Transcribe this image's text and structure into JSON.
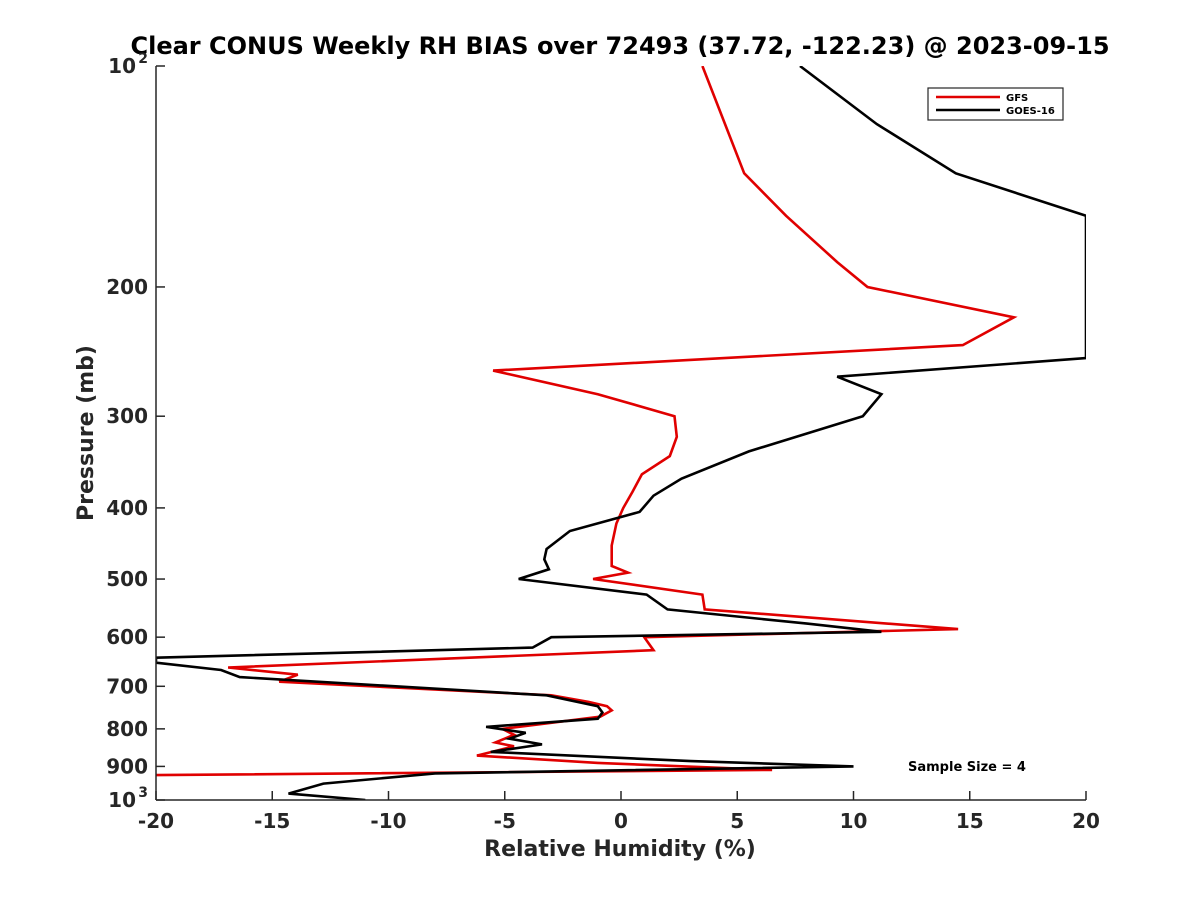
{
  "chart_data": {
    "type": "line",
    "title": "Clear CONUS Weekly RH BIAS over 72493 (37.72, -122.23) @ 2023-09-15",
    "xlabel": "Relative Humidity (%)",
    "ylabel": "Pressure (mb)",
    "xlim": [
      -20,
      20
    ],
    "ylim": [
      100,
      1000
    ],
    "y_scale": "log",
    "y_reversed": false,
    "x_ticks": [
      -20,
      -15,
      -10,
      -5,
      0,
      5,
      10,
      15,
      20
    ],
    "x_tick_labels": [
      "-20",
      "-15",
      "-10",
      "-5",
      "0",
      "5",
      "10",
      "15",
      "20"
    ],
    "y_ticks": [
      {
        "value": 100,
        "base": "10",
        "exp": "2"
      },
      {
        "value": 200,
        "label": "200"
      },
      {
        "value": 300,
        "label": "300"
      },
      {
        "value": 400,
        "label": "400"
      },
      {
        "value": 500,
        "label": "500"
      },
      {
        "value": 600,
        "label": "600"
      },
      {
        "value": 700,
        "label": "700"
      },
      {
        "value": 800,
        "label": "800"
      },
      {
        "value": 900,
        "label": "900"
      },
      {
        "value": 1000,
        "base": "10",
        "exp": "3"
      }
    ],
    "grid": false,
    "legend_position": "top-right",
    "annotation": "Sample Size = 4",
    "series": [
      {
        "name": "GFS",
        "color": "#e00000",
        "points": [
          [
            3.5,
            100
          ],
          [
            5.3,
            140
          ],
          [
            7.1,
            160
          ],
          [
            9.3,
            185
          ],
          [
            10.6,
            200
          ],
          [
            16.9,
            220
          ],
          [
            14.7,
            240
          ],
          [
            -5.5,
            260
          ],
          [
            -1.0,
            280
          ],
          [
            2.3,
            300
          ],
          [
            2.4,
            320
          ],
          [
            2.1,
            340
          ],
          [
            0.9,
            360
          ],
          [
            0.5,
            380
          ],
          [
            0.1,
            400
          ],
          [
            -0.2,
            420
          ],
          [
            -0.4,
            450
          ],
          [
            -0.4,
            480
          ],
          [
            0.3,
            490
          ],
          [
            -1.2,
            500
          ],
          [
            3.5,
            525
          ],
          [
            3.6,
            550
          ],
          [
            14.5,
            585
          ],
          [
            1.0,
            600
          ],
          [
            1.4,
            625
          ],
          [
            -16.9,
            660
          ],
          [
            -13.9,
            675
          ],
          [
            -14.7,
            690
          ],
          [
            -3.0,
            720
          ],
          [
            -1.4,
            735
          ],
          [
            -0.6,
            745
          ],
          [
            -0.4,
            755
          ],
          [
            -0.9,
            770
          ],
          [
            -5.1,
            800
          ],
          [
            -4.6,
            815
          ],
          [
            -5.4,
            835
          ],
          [
            -4.6,
            845
          ],
          [
            -6.2,
            870
          ],
          [
            -1.0,
            890
          ],
          [
            6.5,
            910
          ],
          [
            -20.0,
            925
          ],
          [
            -20.0,
            925
          ]
        ]
      },
      {
        "name": "GOES-16",
        "color": "#000000",
        "points": [
          [
            7.7,
            100
          ],
          [
            11.0,
            120
          ],
          [
            14.4,
            140
          ],
          [
            20.0,
            160
          ],
          [
            20.0,
            250
          ],
          [
            9.3,
            265
          ],
          [
            11.2,
            280
          ],
          [
            10.4,
            300
          ],
          [
            5.5,
            335
          ],
          [
            2.6,
            365
          ],
          [
            1.4,
            385
          ],
          [
            0.8,
            405
          ],
          [
            -2.2,
            430
          ],
          [
            -3.2,
            455
          ],
          [
            -3.3,
            470
          ],
          [
            -3.1,
            485
          ],
          [
            -4.4,
            500
          ],
          [
            1.1,
            525
          ],
          [
            2.0,
            550
          ],
          [
            8.0,
            575
          ],
          [
            11.2,
            590
          ],
          [
            -3.0,
            600
          ],
          [
            -3.8,
            620
          ],
          [
            -20.0,
            640
          ],
          [
            -20.0,
            640
          ],
          [
            -20.0,
            650
          ],
          [
            -17.2,
            665
          ],
          [
            -16.4,
            680
          ],
          [
            -3.2,
            720
          ],
          [
            -1.0,
            745
          ],
          [
            -0.8,
            760
          ],
          [
            -1.0,
            775
          ],
          [
            -5.8,
            795
          ],
          [
            -4.1,
            810
          ],
          [
            -4.8,
            825
          ],
          [
            -3.4,
            840
          ],
          [
            -5.6,
            860
          ],
          [
            3.0,
            885
          ],
          [
            10.0,
            900
          ],
          [
            -8.0,
            920
          ],
          [
            -12.8,
            950
          ],
          [
            -14.3,
            980
          ],
          [
            -11.0,
            1000
          ]
        ]
      }
    ]
  }
}
